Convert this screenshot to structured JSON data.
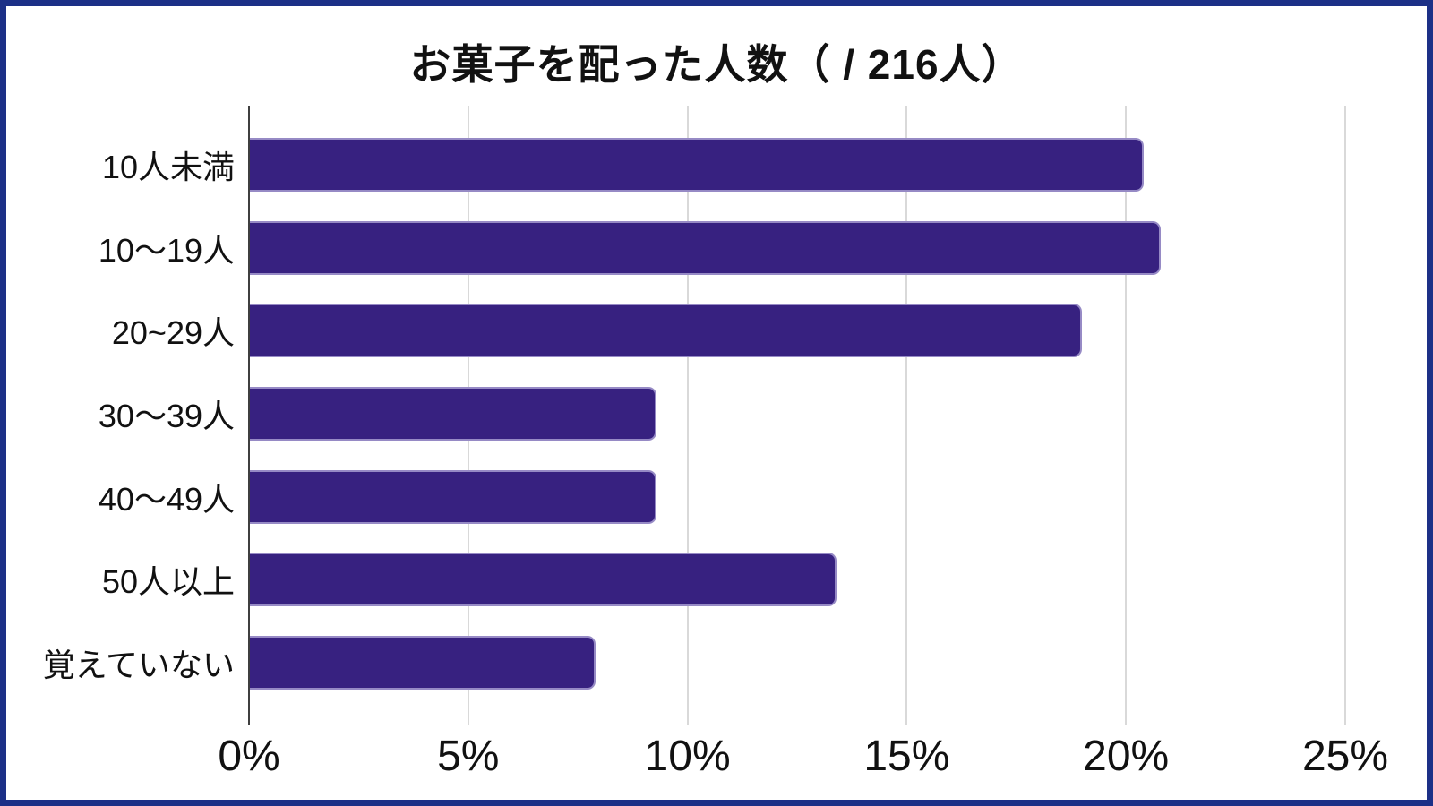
{
  "chart_data": {
    "type": "bar",
    "orientation": "horizontal",
    "title": "お菓子を配った人数（ / 216人）",
    "categories": [
      "10人未満",
      "10〜19人",
      "20~29人",
      "30〜39人",
      "40〜49人",
      "50人以上",
      "覚えていない"
    ],
    "values": [
      20.4,
      20.8,
      19.0,
      9.3,
      9.3,
      13.4,
      7.9
    ],
    "value_unit": "%",
    "xlim": [
      0,
      25
    ],
    "xtick_labels": [
      "0%",
      "5%",
      "10%",
      "15%",
      "20%",
      "25%"
    ],
    "grid": "vertical-gridlines-on",
    "legend": "none",
    "colors": {
      "bar": "#372180",
      "frame_border": "#1c3087",
      "gridline": "#d9d9d9",
      "axis_line": "#3f3f3f",
      "text": "#111111",
      "background": "#ffffff"
    }
  }
}
